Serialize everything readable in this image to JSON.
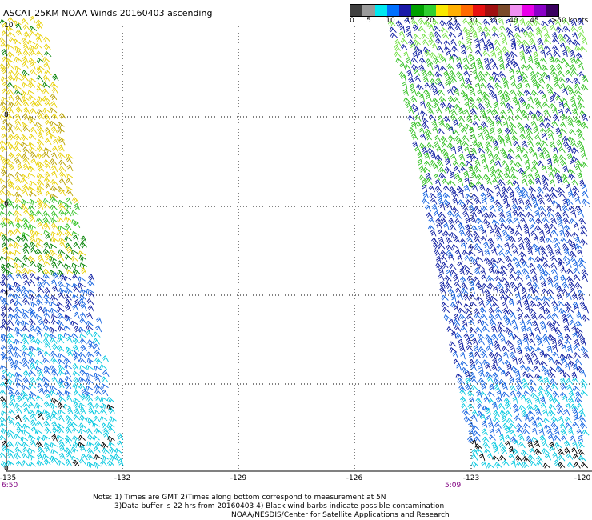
{
  "title": "ASCAT 25KM NOAA Winds 20160403 ascending",
  "colorbar": {
    "colors": [
      "#404040",
      "#9a9a9a",
      "#00e8f0",
      "#0070ff",
      "#1a1aa8",
      "#00a000",
      "#30d030",
      "#f8e800",
      "#ffb000",
      "#ff6a00",
      "#e81010",
      "#a01010",
      "#7a4a2a",
      "#f090f0",
      "#e800e8",
      "#8a00c8",
      "#3a0060"
    ],
    "labels": [
      "0",
      "5",
      "10",
      "15",
      "20",
      "25",
      "30",
      "35",
      "40",
      "45",
      ">50 knots"
    ]
  },
  "lat_labels": [
    "10",
    "8",
    "6",
    "4",
    "2",
    "0"
  ],
  "lon_labels": [
    "-135",
    "-132",
    "-129",
    "-126",
    "-123",
    "-120"
  ],
  "times": {
    "left": "6:50",
    "right": "5:09"
  },
  "notes": [
    "Note: 1) Times are GMT 2)Times along bottom correspond to measurement at 5N",
    "3)Data buffer is 22 hrs from 20160403 4) Black wind barbs indicate possible contamination",
    "NOAA/NESDIS/Center for Satellite Applications and Research"
  ],
  "swath_colors": {
    "yellow": "#e8d000",
    "olive": "#b8a000",
    "green": "#30c020",
    "lightgreen": "#70e040",
    "darkgreen": "#008000",
    "navy": "#0a1aa0",
    "blue": "#1060e0",
    "cyan": "#00c8e0",
    "black": "#000000"
  }
}
